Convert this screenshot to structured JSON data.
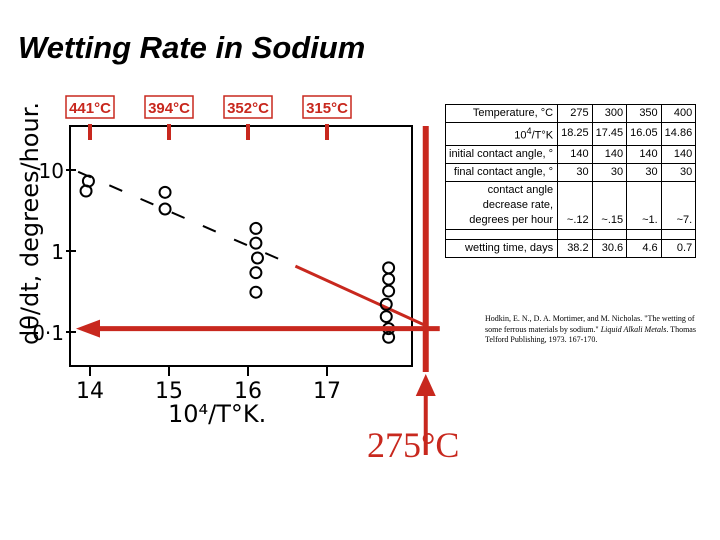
{
  "slide": {
    "title": "Wetting Rate in Sodium"
  },
  "chart_data": {
    "type": "scatter",
    "xlabel": "10⁴/T°K.",
    "ylabel": "dθ/dt, degrees/hour.",
    "x_scale": "linear",
    "y_scale": "log",
    "xlim": [
      13.6,
      18.8
    ],
    "ylim": [
      0.06,
      16
    ],
    "x_ticks": [
      {
        "value": 14,
        "label": "14"
      },
      {
        "value": 15,
        "label": "15"
      },
      {
        "value": 16,
        "label": "16"
      },
      {
        "value": 17,
        "label": "17"
      }
    ],
    "y_ticks": [
      {
        "value": 10,
        "label": "10"
      },
      {
        "value": 1,
        "label": "1"
      },
      {
        "value": 0.1,
        "label": "0·1"
      }
    ],
    "top_temperature_labels": [
      {
        "x": 14,
        "label": "441°C"
      },
      {
        "x": 15,
        "label": "394°C"
      },
      {
        "x": 16,
        "label": "352°C"
      },
      {
        "x": 17,
        "label": "315°C"
      }
    ],
    "points": [
      {
        "x": 13.95,
        "y": 5.5
      },
      {
        "x": 13.98,
        "y": 7.3
      },
      {
        "x": 14.95,
        "y": 5.3
      },
      {
        "x": 14.95,
        "y": 3.3
      },
      {
        "x": 16.1,
        "y": 1.9
      },
      {
        "x": 16.1,
        "y": 1.25
      },
      {
        "x": 16.12,
        "y": 0.82
      },
      {
        "x": 16.1,
        "y": 0.54
      },
      {
        "x": 16.1,
        "y": 0.31
      },
      {
        "x": 17.78,
        "y": 0.62
      },
      {
        "x": 17.78,
        "y": 0.45
      },
      {
        "x": 17.78,
        "y": 0.32
      },
      {
        "x": 17.75,
        "y": 0.22
      },
      {
        "x": 17.75,
        "y": 0.155
      },
      {
        "x": 17.78,
        "y": 0.11
      },
      {
        "x": 17.78,
        "y": 0.086
      }
    ],
    "trend_dashed": {
      "from": {
        "x": 13.85,
        "y": 9.5
      },
      "to": {
        "x": 16.6,
        "y": 0.65
      }
    },
    "trend_solid": {
      "from": {
        "x": 16.6,
        "y": 0.65
      },
      "to": {
        "x": 18.25,
        "y": 0.12
      }
    },
    "extrapolation_x": 18.25,
    "extrapolation_y": 0.11,
    "arrow_label": "275°C"
  },
  "table": {
    "rows": [
      {
        "label": "Temperature, °C",
        "values": [
          "275",
          "300",
          "350",
          "400"
        ]
      },
      {
        "label_html": "10<sup>4</sup>/T°K",
        "values": [
          "18.25",
          "17.45",
          "16.05",
          "14.86"
        ]
      },
      {
        "label": "initial contact angle, °",
        "values": [
          "140",
          "140",
          "140",
          "140"
        ]
      },
      {
        "label": "final contact angle, °",
        "values": [
          "30",
          "30",
          "30",
          "30"
        ]
      },
      {
        "label_lines": [
          "contact angle",
          "decrease rate,",
          "degrees per hour"
        ],
        "values": [
          "~.12",
          "~.15",
          "~1.",
          "~7."
        ]
      },
      {
        "gap": true
      },
      {
        "label": "wetting time, days",
        "values": [
          "38.2",
          "30.6",
          "4.6",
          "0.7"
        ]
      }
    ]
  },
  "citation": {
    "authors": "Hodkin, E. N., D. A. Mortimer, and M. Nicholas. \"The wetting of some ferrous materials by sodium.\" ",
    "source": "Liquid Alkali Metals",
    "publisher": ". Thomas Telford Publishing, 1973. 167-170."
  },
  "colors": {
    "accent_red": "#c8281e",
    "ink": "#000000"
  }
}
